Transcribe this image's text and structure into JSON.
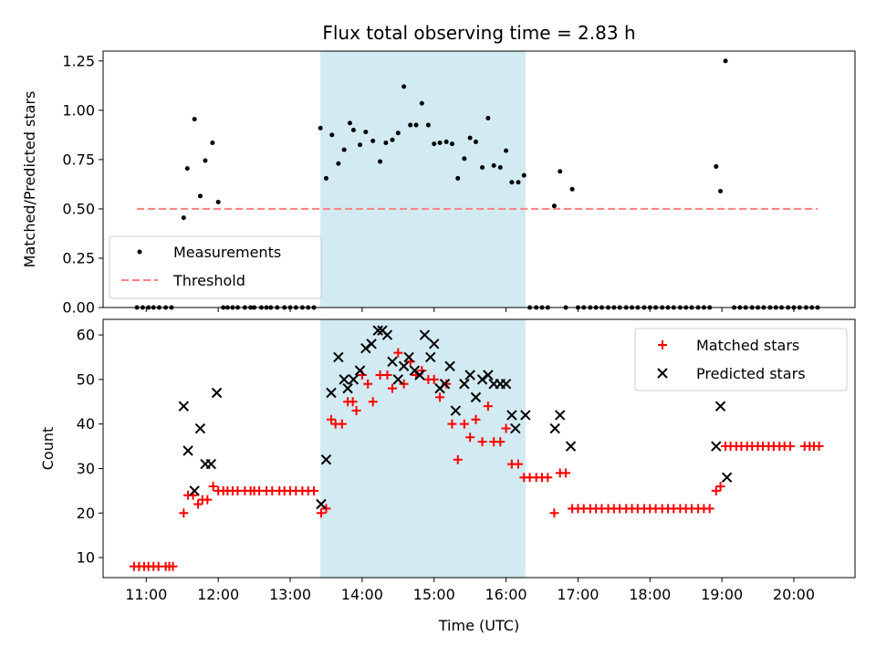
{
  "chart_data": [
    {
      "type": "scatter",
      "title": "Flux total observing time = 2.83 h",
      "xlabel": "",
      "ylabel": "Matched/Predicted stars",
      "xlim": [
        10.4,
        20.85
      ],
      "ylim": [
        0,
        1.3
      ],
      "yticks": [
        0,
        0.25,
        0.5,
        0.75,
        1.0,
        1.25
      ],
      "ytick_labels": [
        "0.00",
        "0.25",
        "0.50",
        "0.75",
        "1.00",
        "1.25"
      ],
      "shaded_span": [
        13.42,
        16.27
      ],
      "shade_color": "#add8e6",
      "legend_position": "lower left",
      "series": [
        {
          "name": "Measurements",
          "color": "#000000",
          "marker": "dot",
          "x": [
            10.87,
            10.95,
            11.03,
            11.1,
            11.18,
            11.27,
            11.35,
            11.52,
            11.57,
            11.67,
            11.75,
            11.82,
            11.92,
            12.0,
            12.07,
            12.13,
            12.2,
            12.27,
            12.37,
            12.45,
            12.5,
            12.6,
            12.67,
            12.73,
            12.82,
            12.92,
            13.0,
            13.08,
            13.17,
            13.25,
            13.33,
            13.42,
            13.5,
            13.58,
            13.67,
            13.75,
            13.83,
            13.88,
            13.97,
            14.05,
            14.15,
            14.25,
            14.33,
            14.42,
            14.5,
            14.58,
            14.67,
            14.75,
            14.83,
            14.92,
            15.0,
            15.08,
            15.17,
            15.25,
            15.33,
            15.42,
            15.5,
            15.58,
            15.67,
            15.75,
            15.83,
            15.92,
            16.0,
            16.08,
            16.17,
            16.25,
            16.33,
            16.42,
            16.5,
            16.58,
            16.67,
            16.75,
            16.83,
            16.92,
            17.0,
            17.08,
            17.17,
            17.25,
            17.33,
            17.42,
            17.5,
            17.58,
            17.67,
            17.75,
            17.83,
            17.92,
            18.0,
            18.08,
            18.17,
            18.25,
            18.33,
            18.42,
            18.5,
            18.58,
            18.67,
            18.75,
            18.83,
            18.92,
            18.98,
            19.05,
            19.17,
            19.25,
            19.33,
            19.42,
            19.5,
            19.58,
            19.67,
            19.75,
            19.83,
            19.92,
            20.0,
            20.08,
            20.17,
            20.25,
            20.33
          ],
          "y": [
            0,
            0,
            0,
            0,
            0,
            0,
            0,
            0.455,
            0.705,
            0.955,
            0.565,
            0.745,
            0.835,
            0.535,
            0,
            0,
            0,
            0,
            0,
            0,
            0,
            0,
            0,
            0,
            0,
            0,
            0,
            0,
            0,
            0,
            0,
            0.91,
            0.655,
            0.875,
            0.73,
            0.8,
            0.935,
            0.9,
            0.825,
            0.89,
            0.845,
            0.74,
            0.835,
            0.85,
            0.885,
            1.12,
            0.925,
            0.925,
            1.035,
            0.925,
            0.83,
            0.835,
            0.84,
            0.83,
            0.655,
            0.755,
            0.86,
            0.84,
            0.71,
            0.96,
            0.72,
            0.71,
            0.795,
            0.635,
            0.635,
            0.67,
            0,
            0,
            0,
            0,
            0.515,
            0.69,
            0,
            0.6,
            0,
            0,
            0,
            0,
            0,
            0,
            0,
            0,
            0,
            0,
            0,
            0,
            0,
            0,
            0,
            0,
            0,
            0,
            0,
            0,
            0,
            0,
            0,
            0.715,
            0.59,
            1.25,
            0,
            0,
            0,
            0,
            0,
            0,
            0,
            0,
            0,
            0,
            0,
            0,
            0,
            0,
            0
          ]
        },
        {
          "name": "Threshold",
          "color": "#ff7f7f",
          "style": "dashed",
          "x": [
            10.87,
            20.33
          ],
          "y": [
            0.5,
            0.5
          ]
        }
      ]
    },
    {
      "type": "scatter",
      "title": "",
      "xlabel": "Time (UTC)",
      "ylabel": "Count",
      "xlim": [
        10.4,
        20.85
      ],
      "ylim": [
        5.5,
        63.5
      ],
      "yticks": [
        10,
        20,
        30,
        40,
        50,
        60
      ],
      "ytick_labels": [
        "10",
        "20",
        "30",
        "40",
        "50",
        "60"
      ],
      "xticks": [
        11,
        12,
        13,
        14,
        15,
        16,
        17,
        18,
        19,
        20
      ],
      "xtick_labels": [
        "11:00",
        "12:00",
        "13:00",
        "14:00",
        "15:00",
        "16:00",
        "17:00",
        "18:00",
        "19:00",
        "20:00"
      ],
      "shaded_span": [
        13.42,
        16.27
      ],
      "shade_color": "#add8e6",
      "legend_position": "upper right",
      "series": [
        {
          "name": "Matched stars",
          "color": "#ff0000",
          "marker": "plus",
          "x": [
            10.83,
            10.9,
            10.97,
            11.03,
            11.1,
            11.17,
            11.27,
            11.32,
            11.37,
            11.52,
            11.58,
            11.65,
            11.72,
            11.78,
            11.85,
            11.93,
            12.0,
            12.07,
            12.13,
            12.2,
            12.27,
            12.37,
            12.45,
            12.5,
            12.57,
            12.67,
            12.75,
            12.85,
            12.92,
            13.0,
            13.08,
            13.17,
            13.25,
            13.33,
            13.43,
            13.5,
            13.57,
            13.63,
            13.72,
            13.8,
            13.87,
            13.92,
            14.0,
            14.08,
            14.15,
            14.25,
            14.35,
            14.42,
            14.5,
            14.58,
            14.67,
            14.75,
            14.83,
            14.92,
            15.0,
            15.08,
            15.17,
            15.25,
            15.33,
            15.42,
            15.5,
            15.58,
            15.67,
            15.75,
            15.83,
            15.92,
            16.0,
            16.08,
            16.17,
            16.25,
            16.33,
            16.42,
            16.5,
            16.58,
            16.67,
            16.75,
            16.83,
            16.92,
            17.0,
            17.08,
            17.17,
            17.25,
            17.33,
            17.42,
            17.5,
            17.58,
            17.67,
            17.75,
            17.83,
            17.92,
            18.0,
            18.08,
            18.17,
            18.25,
            18.33,
            18.42,
            18.5,
            18.58,
            18.67,
            18.75,
            18.83,
            18.92,
            18.98,
            19.05,
            19.12,
            19.2,
            19.27,
            19.35,
            19.42,
            19.5,
            19.57,
            19.65,
            19.72,
            19.8,
            19.87,
            19.95,
            20.15,
            20.22,
            20.28,
            20.35
          ],
          "y": [
            8,
            8,
            8,
            8,
            8,
            8,
            8,
            8,
            8,
            20,
            24,
            24,
            22,
            23,
            23,
            26,
            25,
            25,
            25,
            25,
            25,
            25,
            25,
            25,
            25,
            25,
            25,
            25,
            25,
            25,
            25,
            25,
            25,
            25,
            20,
            21,
            41,
            40,
            40,
            45,
            45,
            43,
            51,
            49,
            45,
            51,
            51,
            48,
            56,
            49,
            54,
            51,
            52,
            50,
            50,
            46,
            49,
            40,
            32,
            40,
            37,
            41,
            36,
            44,
            36,
            36,
            39,
            31,
            31,
            28,
            28,
            28,
            28,
            28,
            20,
            29,
            29,
            21,
            21,
            21,
            21,
            21,
            21,
            21,
            21,
            21,
            21,
            21,
            21,
            21,
            21,
            21,
            21,
            21,
            21,
            21,
            21,
            21,
            21,
            21,
            21,
            25,
            26,
            35,
            35,
            35,
            35,
            35,
            35,
            35,
            35,
            35,
            35,
            35,
            35,
            35,
            35,
            35,
            35,
            35
          ]
        },
        {
          "name": "Predicted stars",
          "color": "#000000",
          "marker": "x",
          "x": [
            11.52,
            11.58,
            11.67,
            11.75,
            11.82,
            11.9,
            11.98,
            13.43,
            13.5,
            13.57,
            13.67,
            13.75,
            13.8,
            13.88,
            13.97,
            14.05,
            14.13,
            14.22,
            14.28,
            14.35,
            14.42,
            14.5,
            14.58,
            14.65,
            14.73,
            14.8,
            14.87,
            14.95,
            15.0,
            15.08,
            15.15,
            15.22,
            15.3,
            15.42,
            15.5,
            15.58,
            15.67,
            15.75,
            15.83,
            15.92,
            16.0,
            16.08,
            16.13,
            16.27,
            16.68,
            16.75,
            16.9,
            18.92,
            18.98,
            19.07
          ],
          "y": [
            44,
            34,
            25,
            39,
            31,
            31,
            47,
            22,
            32,
            47,
            55,
            50,
            48,
            50,
            52,
            57,
            58,
            61,
            61,
            60,
            54,
            50,
            53,
            55,
            52,
            51,
            60,
            55,
            58,
            48,
            49,
            53,
            43,
            49,
            51,
            46,
            50,
            51,
            49,
            49,
            49,
            42,
            39,
            42,
            39,
            42,
            35,
            35,
            44,
            28
          ]
        }
      ]
    }
  ]
}
